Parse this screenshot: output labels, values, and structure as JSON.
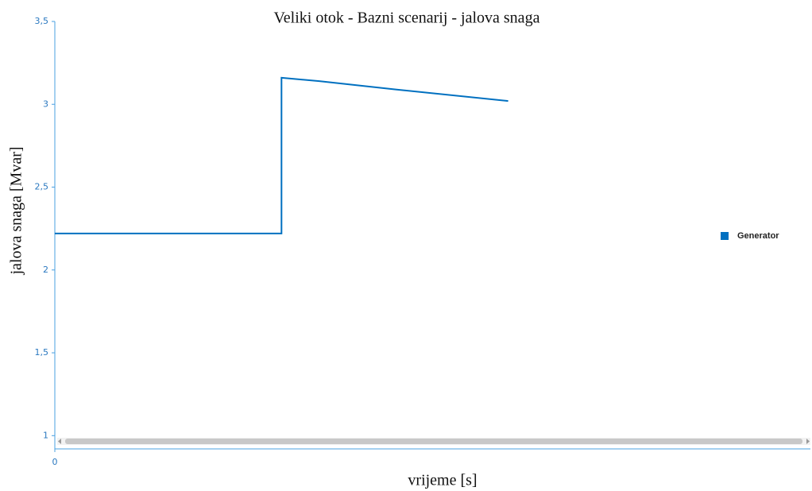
{
  "chart_data": {
    "type": "line",
    "title": "Veliki otok - Bazni scenarij - jalova snaga",
    "xlabel": "vrijeme [s]",
    "ylabel": "jalova snaga [Mvar]",
    "x": [
      0,
      30,
      30,
      35,
      45,
      60
    ],
    "series": [
      {
        "name": "Generator",
        "color": "#0070c0",
        "values": [
          2.22,
          2.22,
          3.16,
          3.14,
          3.09,
          3.02
        ]
      }
    ],
    "xlim": [
      0,
      100
    ],
    "xticks": [
      0
    ],
    "ylim": [
      0.92,
      3.5
    ],
    "yticks": [
      {
        "value": 1,
        "label": "1"
      },
      {
        "value": 1.5,
        "label": "1,5"
      },
      {
        "value": 2,
        "label": "2"
      },
      {
        "value": 2.5,
        "label": "2,5"
      },
      {
        "value": 3,
        "label": "3"
      },
      {
        "value": 3.5,
        "label": "3,5"
      }
    ],
    "legend": "right"
  }
}
